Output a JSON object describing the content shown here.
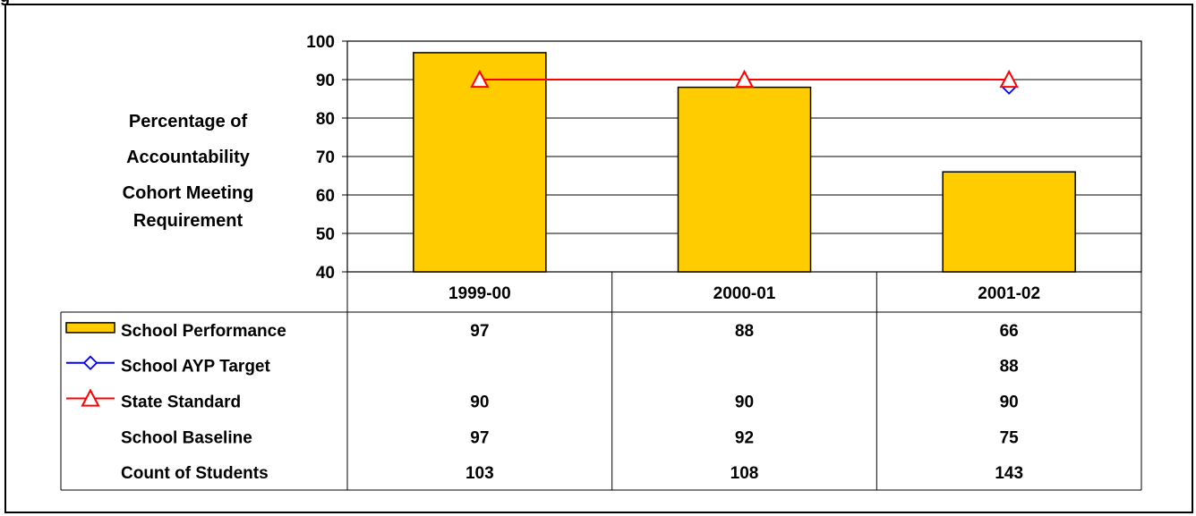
{
  "chart_data": {
    "type": "bar",
    "cutoff_heading": "g",
    "ylabel_lines": [
      "Percentage of",
      "Accountability",
      "Cohort Meeting",
      "Requirement"
    ],
    "ylim": [
      40,
      100
    ],
    "yticks": [
      40,
      50,
      60,
      70,
      80,
      90,
      100
    ],
    "grid": true,
    "categories": [
      "1999-00",
      "2000-01",
      "2001-02"
    ],
    "series": [
      {
        "name": "School Performance",
        "kind": "bar",
        "values": [
          97,
          88,
          66
        ],
        "color": "#FFCC00"
      },
      {
        "name": "School AYP Target",
        "kind": "marker-line",
        "marker": "diamond",
        "values": [
          null,
          null,
          88
        ],
        "color": "#0000FF"
      },
      {
        "name": "State Standard",
        "kind": "marker-line",
        "marker": "triangle",
        "values": [
          90,
          90,
          90
        ],
        "color": "#FF0000"
      }
    ],
    "table_rows": [
      {
        "label": "School Performance",
        "values": [
          "97",
          "88",
          "66"
        ]
      },
      {
        "label": "School AYP Target",
        "values": [
          "",
          "",
          "88"
        ]
      },
      {
        "label": "State Standard",
        "values": [
          "90",
          "90",
          "90"
        ]
      },
      {
        "label": "School Baseline",
        "values": [
          "97",
          "92",
          "75"
        ]
      },
      {
        "label": "Count of Students",
        "values": [
          "103",
          "108",
          "143"
        ]
      }
    ]
  }
}
